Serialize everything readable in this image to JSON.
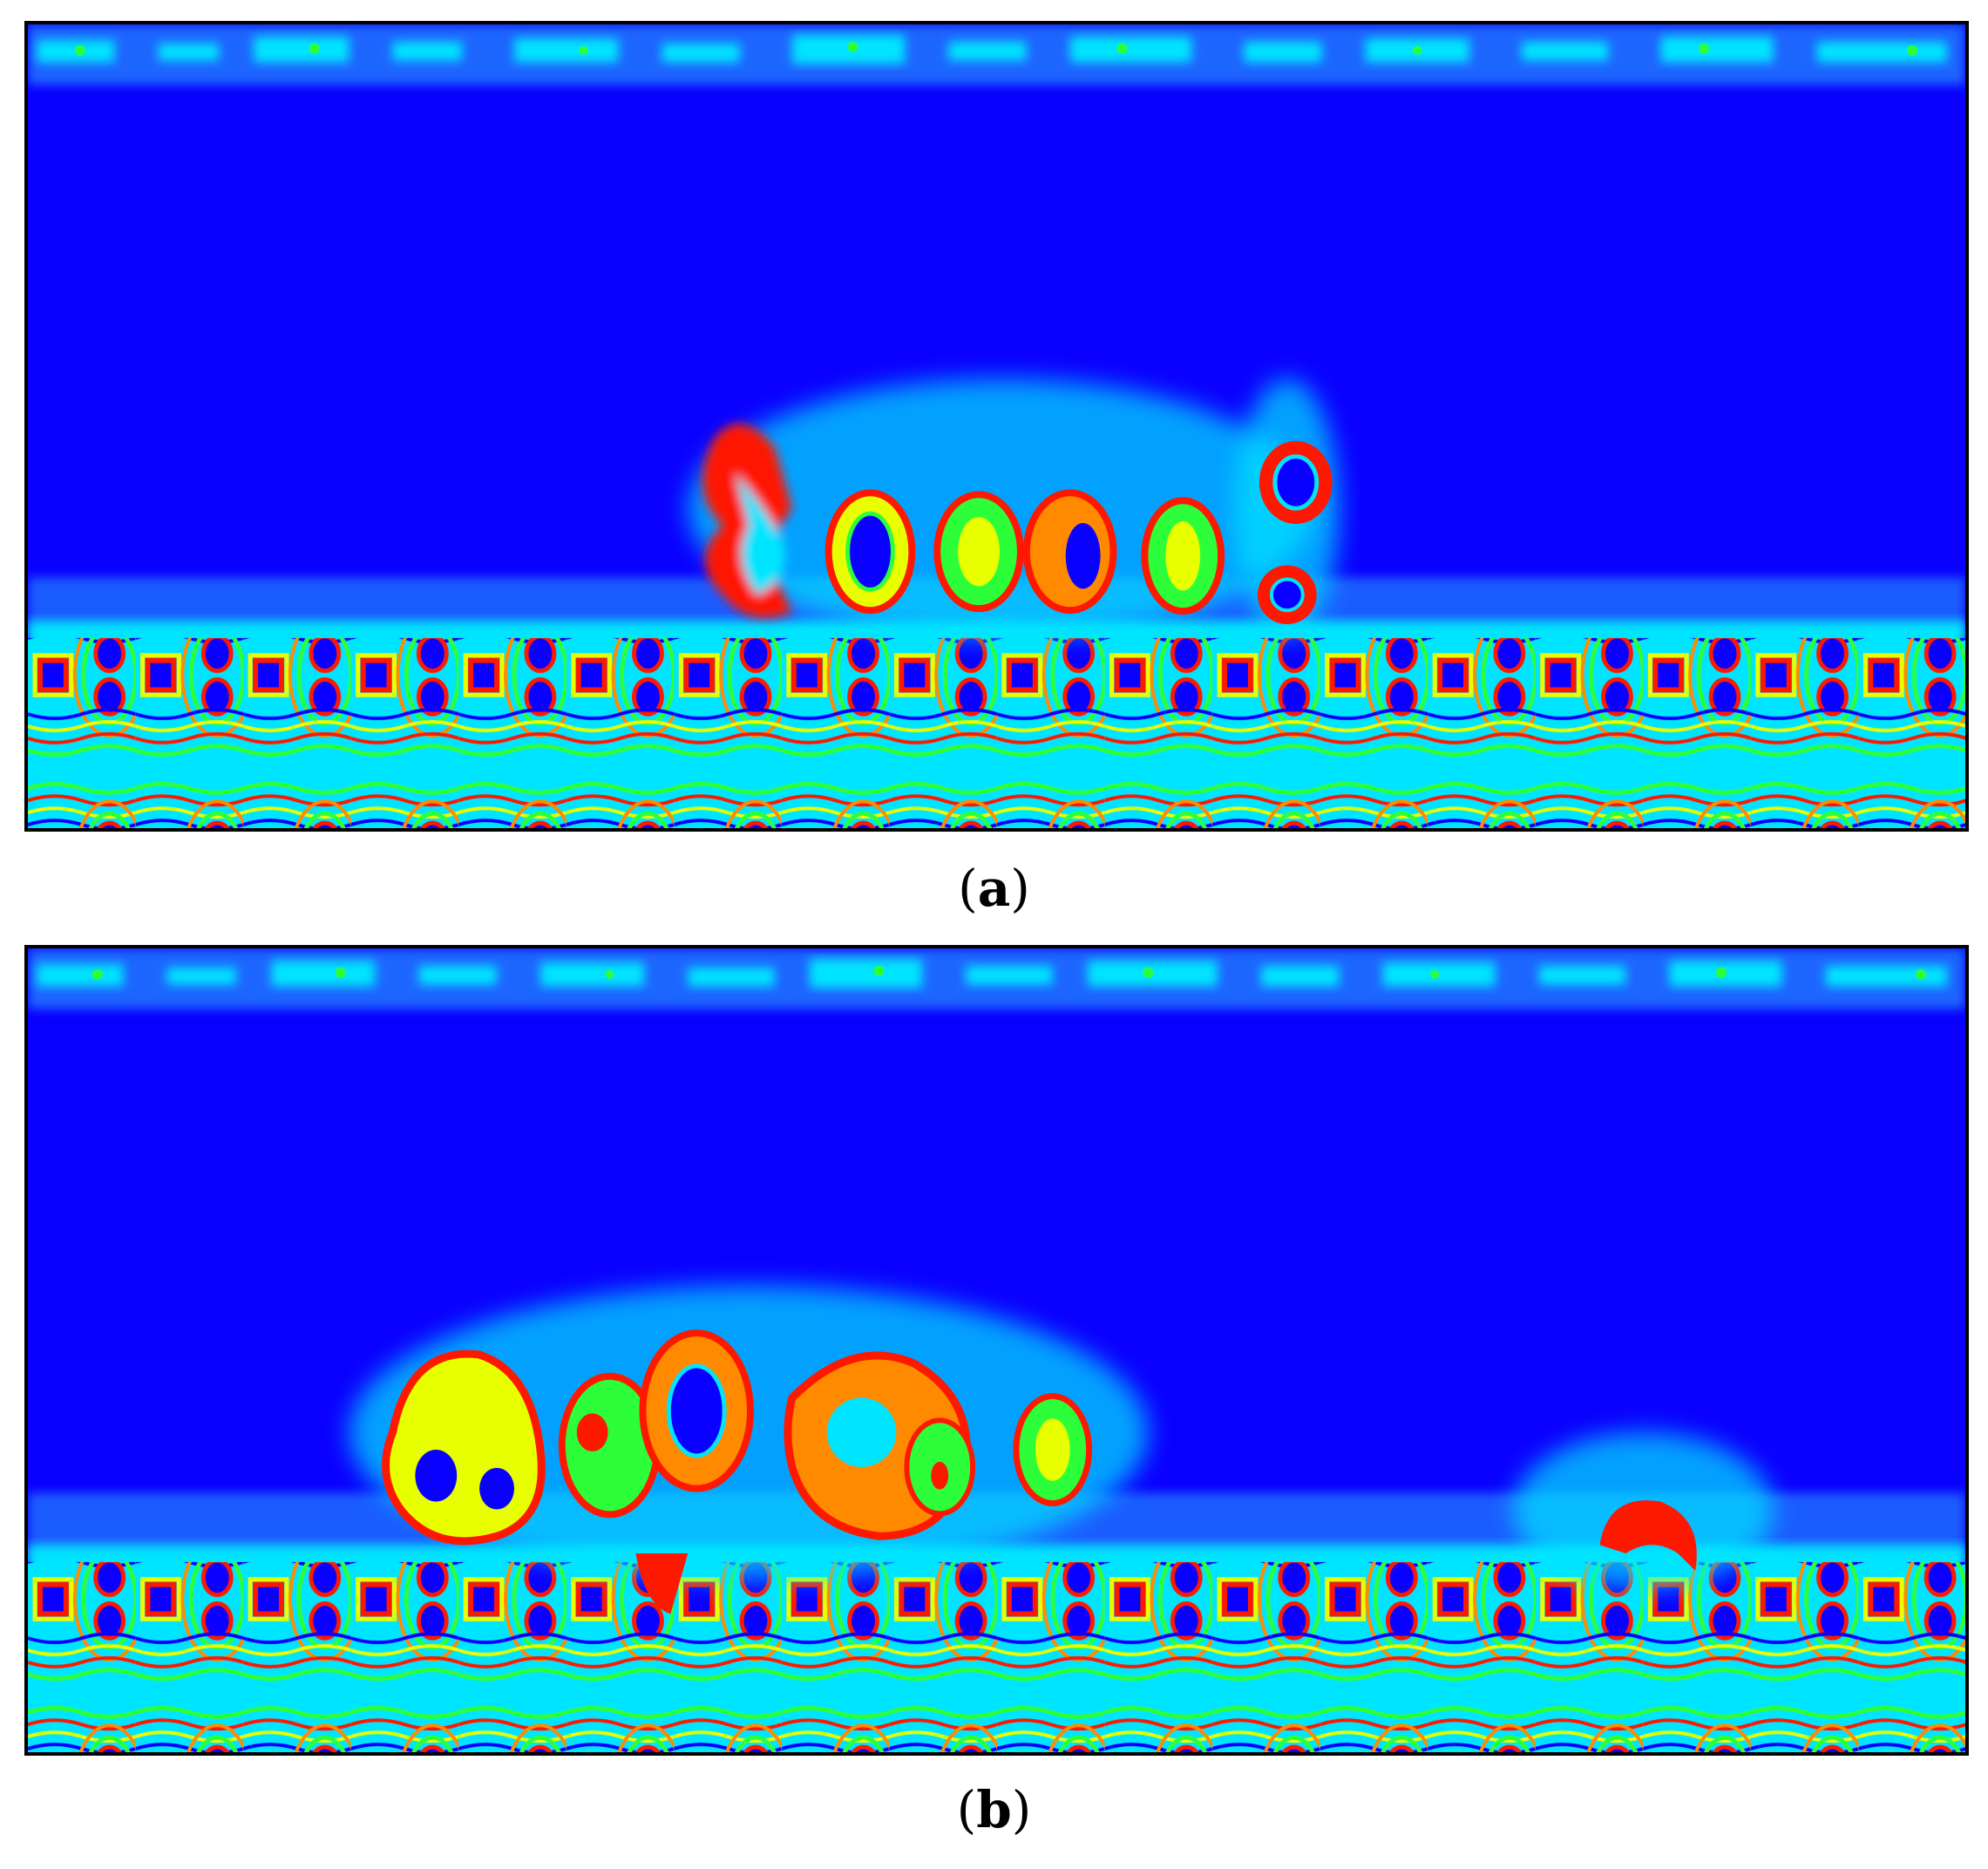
{
  "panels": [
    {
      "id": "a",
      "label": "a",
      "caption_open": "(",
      "caption_close": ")"
    },
    {
      "id": "b",
      "label": "b",
      "caption_open": "(",
      "caption_close": ")"
    }
  ],
  "colors": {
    "background": "#0a00ff",
    "cyan": "#00e5ff",
    "green": "#2cff3a",
    "yellow": "#e8ff00",
    "orange": "#ff8a00",
    "red": "#ff1800"
  },
  "icons": {
    "field-image": "simulated-field-contour"
  }
}
